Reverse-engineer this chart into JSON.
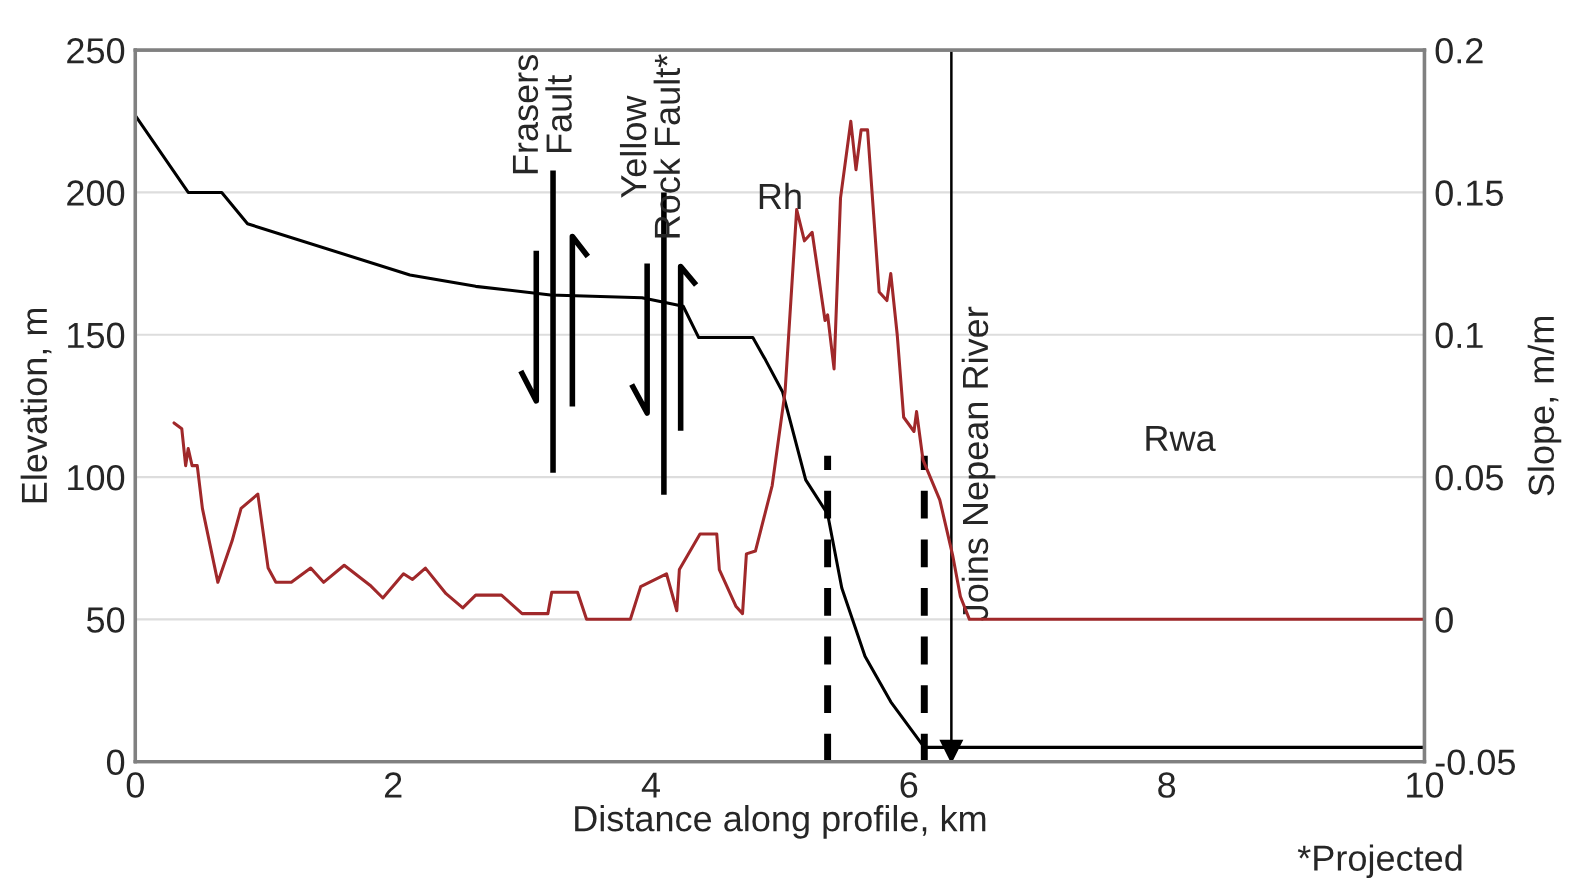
{
  "chart_data": {
    "type": "line",
    "xlabel": "Distance along profile, km",
    "ylabel": "Elevation, m",
    "y2label": "Slope, m/m",
    "xlim": [
      0,
      10
    ],
    "xticks": [
      0,
      2,
      4,
      6,
      8,
      10
    ],
    "ylim": [
      0,
      250
    ],
    "yticks": [
      0,
      50,
      100,
      150,
      200,
      250
    ],
    "y2lim": [
      -0.05,
      0.2
    ],
    "y2ticks": [
      -0.05,
      0,
      0.05,
      0.1,
      0.15,
      0.2
    ],
    "grid": "y",
    "series": [
      {
        "color": "#000000",
        "x": [
          0,
          0.41,
          0.67,
          0.87,
          2.13,
          2.64,
          3.22,
          3.93,
          4.25,
          4.37,
          4.79,
          4.89,
          5.02,
          5.2,
          5.37,
          5.48,
          5.66,
          5.86,
          6.12,
          10
        ],
        "values": [
          227,
          200,
          200,
          189,
          171,
          167,
          164,
          163,
          160,
          149,
          149,
          141,
          130,
          99,
          87,
          61,
          37,
          21,
          5,
          5
        ]
      },
      {
        "color": "#a0282a",
        "axis": "y2",
        "x": [
          0.3,
          0.36,
          0.39,
          0.41,
          0.44,
          0.48,
          0.52,
          0.64,
          0.75,
          0.82,
          0.95,
          1.03,
          1.09,
          1.21,
          1.36,
          1.46,
          1.62,
          1.82,
          1.92,
          2.08,
          2.15,
          2.25,
          2.41,
          2.54,
          2.64,
          2.84,
          3.0,
          3.2,
          3.23,
          3.43,
          3.5,
          3.84,
          3.92,
          4.12,
          4.2,
          4.22,
          4.38,
          4.51,
          4.53,
          4.66,
          4.71,
          4.74,
          4.81,
          4.94,
          5.04,
          5.13,
          5.19,
          5.25,
          5.35,
          5.37,
          5.42,
          5.47,
          5.55,
          5.59,
          5.63,
          5.68,
          5.77,
          5.83,
          5.86,
          5.91,
          5.96,
          6.04,
          6.06,
          6.11,
          6.24,
          6.34,
          6.4,
          6.47,
          10
        ],
        "values": [
          0.069,
          0.067,
          0.054,
          0.06,
          0.054,
          0.054,
          0.039,
          0.013,
          0.0275,
          0.039,
          0.044,
          0.018,
          0.013,
          0.013,
          0.018,
          0.013,
          0.019,
          0.012,
          0.0075,
          0.016,
          0.014,
          0.018,
          0.009,
          0.004,
          0.0085,
          0.0085,
          0.002,
          0.002,
          0.0095,
          0.0095,
          0,
          0,
          0.0115,
          0.016,
          0.003,
          0.0175,
          0.03,
          0.03,
          0.0175,
          0.0045,
          0.002,
          0.023,
          0.024,
          0.047,
          0.08,
          0.144,
          0.133,
          0.136,
          0.105,
          0.107,
          0.088,
          0.148,
          0.175,
          0.158,
          0.172,
          0.172,
          0.115,
          0.112,
          0.1215,
          0.1,
          0.071,
          0.066,
          0.073,
          0.056,
          0.042,
          0.0225,
          0.008,
          0,
          0
        ]
      }
    ],
    "ref_lines": [
      {
        "axis": "x",
        "value": 5.37,
        "line_style": "dashed",
        "color": "#000000"
      },
      {
        "axis": "x",
        "value": 6.12,
        "line_style": "dashed",
        "color": "#000000"
      },
      {
        "axis": "x",
        "value": 6.33,
        "line_style": "solid",
        "color": "#000000",
        "label": "Joins Nepean River"
      }
    ],
    "annotations": [
      "Frasers\nFault",
      "Yellow\nRock Fault*",
      "Rh",
      "Rwa",
      "*Projected"
    ]
  }
}
